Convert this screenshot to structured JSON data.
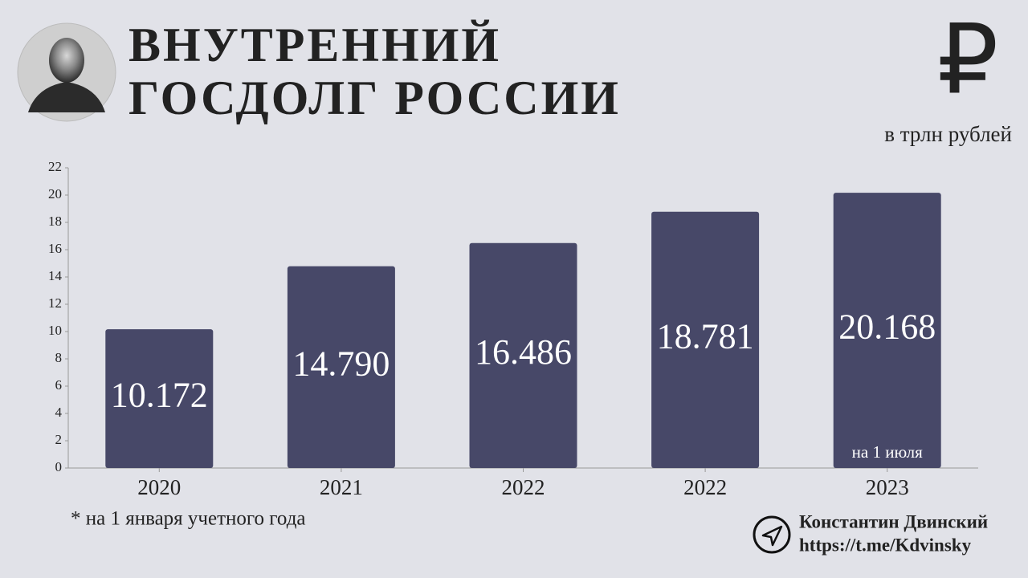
{
  "chart_data": {
    "type": "bar",
    "title": [
      "ВНУТРЕННИЙ",
      "ГОСДОЛГ РОССИИ"
    ],
    "currency_symbol": "₽",
    "subtitle": "в трлн рублей",
    "categories": [
      "2020",
      "2021",
      "2022",
      "2022",
      "2023"
    ],
    "values": [
      10.172,
      14.79,
      16.486,
      18.781,
      20.168
    ],
    "value_labels": [
      "10.172",
      "14.790",
      "16.486",
      "18.781",
      "20.168"
    ],
    "bar_note": "на 1 июля",
    "color": "#474868",
    "ylim": [
      0,
      22
    ],
    "yticks": [
      0,
      2,
      4,
      6,
      8,
      10,
      12,
      14,
      16,
      18,
      20,
      22
    ],
    "footnote": "* на 1 января учетного года",
    "author": "Константин Двинский",
    "link": "https://t.me/Kdvinsky"
  }
}
